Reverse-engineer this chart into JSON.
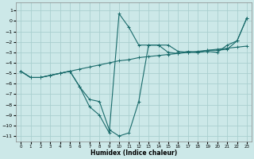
{
  "title": "",
  "xlabel": "Humidex (Indice chaleur)",
  "xlim": [
    -0.5,
    23.5
  ],
  "ylim": [
    -11.5,
    1.8
  ],
  "yticks": [
    1,
    0,
    -1,
    -2,
    -3,
    -4,
    -5,
    -6,
    -7,
    -8,
    -9,
    -10,
    -11
  ],
  "xticks": [
    0,
    1,
    2,
    3,
    4,
    5,
    6,
    7,
    8,
    9,
    10,
    11,
    12,
    13,
    14,
    15,
    16,
    17,
    18,
    19,
    20,
    21,
    22,
    23
  ],
  "bg_color": "#cce8e8",
  "grid_color": "#aacfcf",
  "line_color": "#1a6b6b",
  "line1_x": [
    0,
    1,
    2,
    3,
    4,
    5,
    6,
    7,
    8,
    9,
    10,
    11,
    12,
    13,
    14,
    15,
    16,
    17,
    18,
    19,
    20,
    21,
    22,
    23
  ],
  "line1_y": [
    -4.8,
    -5.4,
    -5.4,
    -5.2,
    -5.0,
    -4.8,
    -4.6,
    -4.4,
    -4.2,
    -4.0,
    -3.8,
    -3.7,
    -3.5,
    -3.4,
    -3.3,
    -3.2,
    -3.1,
    -3.0,
    -2.9,
    -2.8,
    -2.7,
    -2.6,
    -2.5,
    -2.4
  ],
  "line2_x": [
    0,
    1,
    2,
    3,
    4,
    5,
    6,
    7,
    8,
    9,
    10,
    11,
    12,
    13,
    14,
    15,
    16,
    17,
    18,
    19,
    20,
    21,
    22,
    23
  ],
  "line2_y": [
    -4.8,
    -5.4,
    -5.4,
    -5.2,
    -5.0,
    -4.8,
    -6.3,
    -8.2,
    -9.0,
    -10.7,
    0.7,
    -0.6,
    -2.3,
    -2.3,
    -2.3,
    -3.0,
    -3.1,
    -2.9,
    -3.0,
    -2.9,
    -3.0,
    -2.3,
    -1.9,
    0.3
  ],
  "line3_x": [
    0,
    1,
    2,
    3,
    4,
    5,
    6,
    7,
    8,
    9,
    10,
    11,
    12,
    13,
    14,
    15,
    16,
    17,
    18,
    19,
    20,
    21,
    22,
    23
  ],
  "line3_y": [
    -4.8,
    -5.4,
    -5.4,
    -5.2,
    -5.0,
    -4.8,
    -6.3,
    -7.5,
    -7.7,
    -10.4,
    -11.0,
    -10.7,
    -7.7,
    -2.3,
    -2.3,
    -2.3,
    -2.9,
    -3.0,
    -3.0,
    -2.8,
    -2.8,
    -2.7,
    -1.9,
    0.3
  ]
}
